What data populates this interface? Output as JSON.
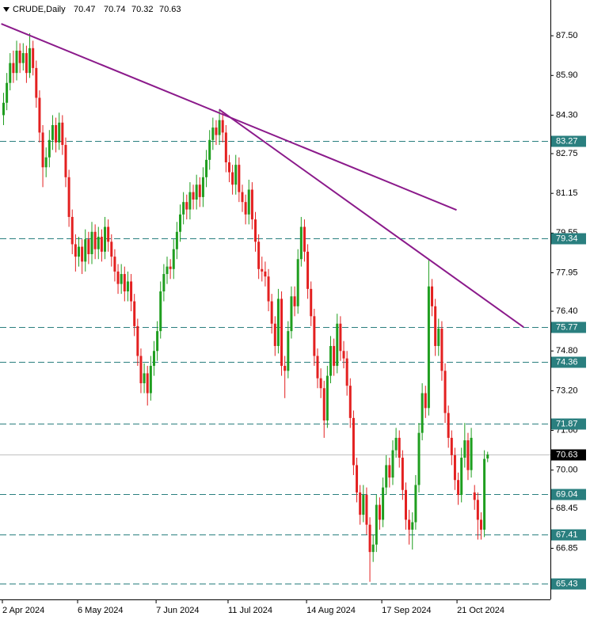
{
  "chart_data": {
    "type": "candlestick",
    "title": "CRUDE,Daily",
    "up_color": "#1f9e1f",
    "down_color": "#e32020",
    "level_color": "#2a7f7f",
    "current_color": "#000000",
    "trendline_color": "#8b1a8b",
    "ylim": [
      64.79,
      88.94
    ],
    "yticks": [
      {
        "value": 87.5,
        "label": "87.50"
      },
      {
        "value": 85.9,
        "label": "85.90"
      },
      {
        "value": 84.3,
        "label": "84.30"
      },
      82.75,
      81.15,
      79.55,
      77.95,
      {
        "value": 76.4,
        "label": "76.40"
      },
      {
        "value": 74.8,
        "label": "74.80"
      },
      {
        "value": 73.2,
        "label": "73.20"
      },
      {
        "value": 71.6,
        "label": "71.60"
      },
      {
        "value": 70,
        "label": "70.00"
      },
      68.45,
      66.85
    ],
    "levels": [
      83.27,
      79.34,
      75.77,
      74.36,
      71.87,
      69.04,
      67.41,
      65.43
    ],
    "trendlines": [
      {
        "x": [
          -0.7,
          138.5
        ],
        "y": [
          87.98,
          80.48
        ]
      },
      {
        "x": [
          65.9,
          159
        ],
        "y": [
          84.53,
          75.76
        ]
      }
    ],
    "categories": [
      "2 Apr 2024",
      null,
      null,
      null,
      null,
      null,
      null,
      null,
      null,
      null,
      null,
      null,
      null,
      null,
      null,
      null,
      null,
      null,
      null,
      null,
      null,
      null,
      null,
      "6 May 2024",
      null,
      null,
      null,
      null,
      null,
      null,
      null,
      null,
      null,
      null,
      null,
      null,
      null,
      null,
      null,
      null,
      null,
      null,
      null,
      null,
      null,
      null,
      null,
      "7 Jun 2024",
      null,
      null,
      null,
      null,
      null,
      null,
      null,
      null,
      null,
      null,
      null,
      null,
      null,
      null,
      null,
      null,
      null,
      null,
      null,
      null,
      null,
      "11 Jul 2024",
      null,
      null,
      null,
      null,
      null,
      null,
      null,
      null,
      null,
      null,
      null,
      null,
      null,
      null,
      null,
      null,
      null,
      null,
      null,
      null,
      null,
      null,
      null,
      "14 Aug 2024",
      null,
      null,
      null,
      null,
      null,
      null,
      null,
      null,
      null,
      null,
      null,
      null,
      null,
      null,
      null,
      null,
      null,
      null,
      null,
      null,
      null,
      null,
      "17 Sep 2024",
      null,
      null,
      null,
      null,
      null,
      null,
      null,
      null,
      null,
      null,
      null,
      null,
      null,
      null,
      null,
      null,
      null,
      null,
      null,
      null,
      null,
      null,
      "21 Oct 2024",
      null,
      null,
      null,
      null,
      null,
      null,
      null,
      null,
      null
    ],
    "open": [
      84.3,
      84.8,
      85.6,
      86.4,
      86.0,
      86.9,
      86.4,
      86.8,
      86.0,
      87.0,
      86.2,
      85.0,
      83.6,
      82.2,
      82.6,
      83.3,
      83.9,
      83.2,
      84.0,
      83.1,
      81.8,
      80.2,
      79.1,
      78.6,
      79.0,
      78.4,
      79.3,
      78.7,
      79.6,
      78.9,
      79.4,
      78.8,
      79.8,
      79.2,
      78.6,
      78.0,
      77.5,
      77.9,
      77.2,
      77.6,
      76.8,
      75.8,
      74.6,
      73.5,
      73.9,
      73.1,
      74.2,
      74.8,
      75.6,
      77.2,
      77.9,
      78.2,
      78.1,
      78.9,
      79.6,
      80.3,
      80.8,
      80.5,
      81.2,
      80.9,
      81.5,
      81.0,
      81.8,
      82.5,
      83.3,
      83.8,
      83.5,
      84.1,
      83.6,
      82.4,
      82.0,
      81.5,
      82.3,
      81.2,
      80.8,
      80.3,
      81.3,
      80.1,
      79.2,
      78.1,
      78.0,
      77.8,
      76.8,
      75.9,
      75.0,
      76.9,
      74.2,
      74.0,
      75.6,
      77.0,
      76.6,
      78.5,
      79.8,
      78.8,
      77.3,
      76.2,
      74.6,
      73.7,
      73.3,
      72.0,
      73.8,
      75.0,
      74.2,
      75.9,
      74.8,
      74.5,
      73.4,
      72.1,
      70.2,
      69.1,
      68.2,
      69.0,
      67.8,
      66.7,
      67.0,
      68.6,
      68.0,
      69.3,
      70.2,
      69.7,
      70.8,
      71.3,
      70.5,
      69.2,
      68.0,
      67.6,
      67.9,
      69.4,
      71.5,
      73.1,
      72.5,
      77.4,
      76.6,
      75.0,
      75.7,
      74.0,
      72.3,
      71.3,
      70.6,
      69.6,
      69.0,
      70.5,
      71.2,
      70.0,
      69.1,
      68.8,
      68.0,
      67.6,
      70.47
    ],
    "high": [
      85.2,
      86.0,
      86.8,
      86.9,
      87.3,
      87.2,
      87.2,
      87.1,
      87.6,
      87.3,
      86.5,
      85.3,
      83.9,
      83.0,
      83.7,
      84.3,
      84.2,
      84.4,
      84.3,
      83.4,
      82.1,
      80.5,
      79.5,
      79.4,
      79.3,
      79.7,
      79.6,
      80.0,
      79.9,
      79.8,
      79.7,
      80.2,
      80.1,
      79.5,
      78.9,
      78.3,
      78.3,
      78.2,
      78.0,
      77.9,
      77.1,
      76.1,
      74.9,
      74.3,
      74.2,
      74.6,
      75.2,
      76.0,
      77.6,
      78.3,
      78.6,
      78.5,
      79.3,
      80.0,
      80.7,
      81.2,
      81.1,
      81.6,
      81.5,
      81.9,
      81.8,
      82.2,
      82.9,
      83.7,
      84.2,
      84.1,
      84.5,
      84.4,
      83.9,
      82.7,
      82.3,
      82.7,
      82.6,
      81.5,
      81.1,
      81.7,
      81.6,
      80.4,
      79.5,
      78.6,
      78.4,
      78.1,
      77.1,
      76.2,
      77.3,
      77.2,
      74.6,
      76.0,
      77.4,
      77.4,
      78.9,
      80.2,
      80.1,
      79.1,
      77.6,
      76.5,
      74.9,
      74.1,
      73.6,
      74.2,
      75.4,
      75.3,
      76.3,
      76.2,
      75.2,
      74.8,
      73.7,
      72.4,
      70.5,
      69.4,
      69.4,
      69.3,
      68.1,
      67.4,
      69.0,
      68.9,
      69.7,
      70.6,
      70.5,
      71.2,
      71.7,
      71.6,
      70.8,
      69.5,
      68.4,
      68.3,
      69.8,
      71.9,
      73.5,
      73.4,
      78.5,
      77.7,
      76.9,
      76.1,
      76.0,
      74.3,
      72.6,
      71.6,
      70.9,
      69.9,
      70.9,
      71.9,
      71.5,
      71.7,
      69.4,
      69.1,
      68.3,
      70.8,
      70.74
    ],
    "low": [
      83.9,
      84.5,
      85.3,
      85.6,
      85.7,
      86.0,
      86.1,
      85.6,
      85.8,
      85.9,
      84.6,
      83.2,
      81.4,
      81.8,
      82.2,
      82.9,
      82.8,
      82.9,
      82.7,
      81.4,
      79.8,
      78.7,
      78.0,
      78.2,
      77.9,
      78.0,
      78.3,
      78.3,
      78.5,
      78.5,
      78.4,
      78.5,
      78.8,
      78.2,
      77.6,
      77.1,
      77.1,
      76.8,
      76.8,
      76.4,
      75.4,
      74.2,
      73.1,
      73.1,
      72.6,
      72.8,
      73.8,
      74.4,
      75.3,
      76.8,
      77.5,
      77.7,
      77.7,
      78.5,
      79.2,
      79.9,
      80.1,
      80.1,
      80.5,
      80.5,
      80.6,
      80.6,
      81.4,
      82.1,
      82.9,
      83.1,
      83.1,
      83.2,
      82.0,
      81.6,
      81.1,
      81.1,
      80.8,
      80.4,
      79.9,
      79.9,
      79.7,
      78.8,
      77.7,
      77.6,
      77.4,
      76.4,
      75.5,
      74.6,
      74.7,
      73.8,
      72.9,
      73.7,
      75.3,
      76.2,
      76.3,
      78.2,
      78.4,
      76.9,
      75.8,
      74.2,
      73.3,
      72.9,
      71.3,
      71.7,
      73.5,
      73.8,
      73.9,
      74.4,
      74.1,
      73.0,
      71.7,
      69.8,
      68.7,
      67.8,
      67.9,
      67.4,
      65.5,
      66.3,
      66.7,
      67.6,
      67.7,
      69.0,
      69.3,
      69.4,
      70.5,
      70.1,
      68.8,
      67.6,
      67.0,
      66.8,
      67.6,
      69.1,
      71.2,
      72.1,
      72.2,
      76.2,
      74.6,
      74.6,
      73.6,
      71.9,
      70.9,
      70.2,
      69.2,
      68.6,
      68.7,
      70.1,
      69.6,
      69.7,
      68.4,
      67.2,
      67.2,
      67.3,
      70.32
    ],
    "close": [
      84.8,
      85.6,
      86.4,
      86.0,
      86.9,
      86.4,
      86.8,
      86.0,
      87.0,
      86.2,
      85.0,
      83.6,
      82.2,
      82.6,
      83.3,
      83.9,
      83.2,
      84.0,
      83.1,
      81.8,
      80.2,
      79.1,
      78.6,
      79.0,
      78.4,
      79.3,
      78.7,
      79.6,
      78.9,
      79.4,
      78.8,
      79.8,
      79.2,
      78.6,
      78.0,
      77.5,
      77.9,
      77.2,
      77.6,
      76.8,
      75.8,
      74.6,
      73.5,
      73.9,
      73.1,
      74.2,
      74.8,
      75.6,
      77.2,
      77.9,
      78.2,
      78.1,
      78.9,
      79.6,
      80.3,
      80.8,
      80.5,
      81.2,
      80.9,
      81.5,
      81.0,
      81.8,
      82.5,
      83.3,
      83.8,
      83.5,
      84.1,
      83.6,
      82.4,
      82.0,
      81.5,
      82.3,
      81.2,
      80.8,
      80.3,
      81.3,
      80.1,
      79.2,
      78.1,
      78.0,
      77.8,
      76.8,
      75.9,
      75.0,
      76.9,
      74.2,
      74.0,
      75.6,
      77.0,
      76.6,
      78.5,
      79.8,
      78.8,
      77.3,
      76.2,
      74.6,
      73.7,
      73.3,
      72.0,
      73.8,
      75.0,
      74.2,
      75.9,
      74.8,
      74.5,
      73.4,
      72.1,
      70.2,
      69.1,
      68.2,
      69.0,
      67.8,
      66.7,
      67.0,
      68.6,
      68.0,
      69.3,
      70.2,
      69.7,
      70.8,
      71.3,
      70.5,
      69.2,
      68.0,
      67.6,
      67.9,
      69.4,
      71.5,
      73.1,
      72.5,
      77.4,
      76.6,
      75.0,
      75.7,
      74.0,
      72.3,
      71.3,
      70.6,
      69.6,
      69.0,
      70.5,
      71.2,
      70.0,
      71.3,
      68.8,
      68.0,
      67.6,
      70.45,
      70.63
    ]
  }
}
